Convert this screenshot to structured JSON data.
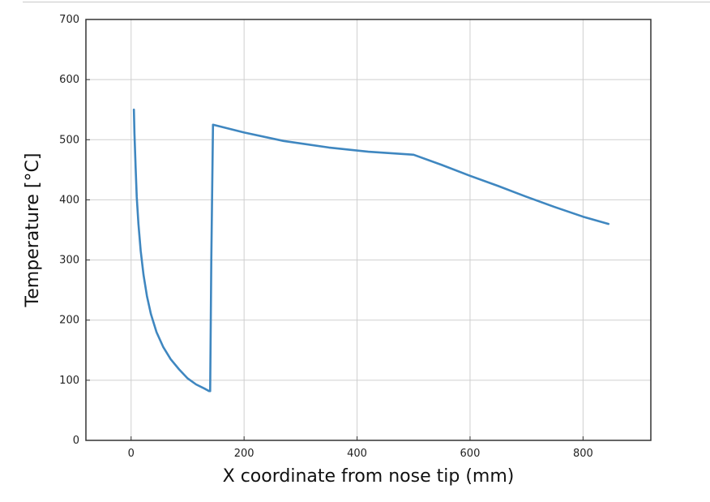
{
  "chart_data": {
    "type": "line",
    "title": "",
    "xlabel": "X coordinate from nose tip (mm)",
    "ylabel": "Temperature [°C]",
    "xlim": [
      -80,
      920
    ],
    "ylim": [
      0,
      700
    ],
    "xticks": [
      0,
      200,
      400,
      600,
      800
    ],
    "yticks": [
      0,
      100,
      200,
      300,
      400,
      500,
      600,
      700
    ],
    "grid": true,
    "legend": "none",
    "series": [
      {
        "color": "#3f87c0",
        "x": [
          5,
          6,
          8,
          10,
          13,
          17,
          22,
          28,
          35,
          45,
          57,
          70,
          85,
          100,
          115,
          130,
          138,
          140,
          142,
          145,
          200,
          270,
          350,
          420,
          500,
          550,
          600,
          650,
          700,
          750,
          800,
          845
        ],
        "y": [
          550,
          510,
          455,
          405,
          360,
          315,
          275,
          240,
          210,
          180,
          155,
          135,
          118,
          103,
          93,
          86,
          82,
          82,
          300,
          525,
          512,
          498,
          487,
          480,
          475,
          458,
          440,
          423,
          405,
          388,
          372,
          360
        ]
      }
    ]
  }
}
